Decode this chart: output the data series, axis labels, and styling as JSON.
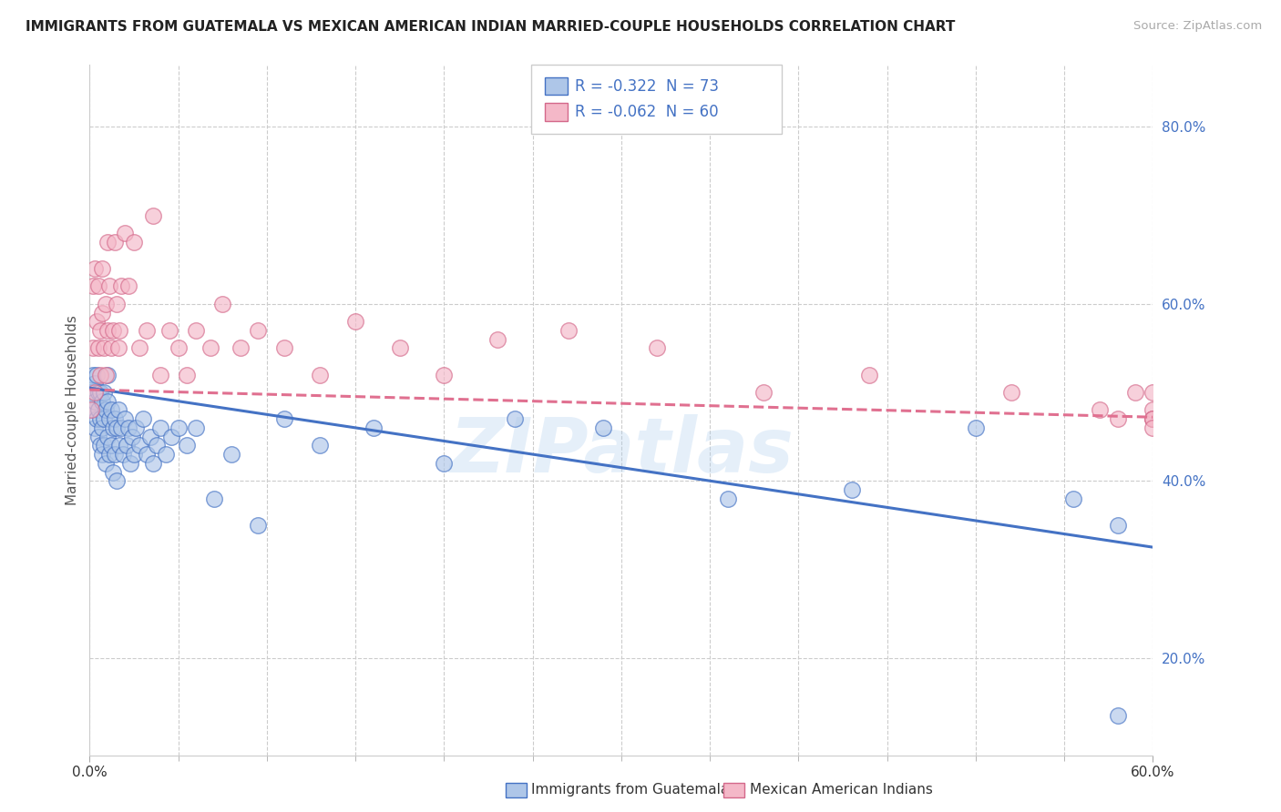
{
  "title": "IMMIGRANTS FROM GUATEMALA VS MEXICAN AMERICAN INDIAN MARRIED-COUPLE HOUSEHOLDS CORRELATION CHART",
  "source": "Source: ZipAtlas.com",
  "xlabel_blue": "Immigrants from Guatemala",
  "xlabel_pink": "Mexican American Indians",
  "ylabel": "Married-couple Households",
  "xlim": [
    0.0,
    0.6
  ],
  "ylim": [
    0.09,
    0.87
  ],
  "yticks": [
    0.2,
    0.4,
    0.6,
    0.8
  ],
  "xtick_major": [
    0.0,
    0.6
  ],
  "blue_R": -0.322,
  "blue_N": 73,
  "pink_R": -0.062,
  "pink_N": 60,
  "blue_color": "#aec6e8",
  "pink_color": "#f4b8c8",
  "blue_line_color": "#4472c4",
  "pink_line_color": "#e07090",
  "watermark": "ZIPatlas",
  "blue_line_x0": 0.0,
  "blue_line_y0": 0.505,
  "blue_line_x1": 0.6,
  "blue_line_y1": 0.325,
  "pink_line_x0": 0.0,
  "pink_line_y0": 0.503,
  "pink_line_x1": 0.6,
  "pink_line_y1": 0.472,
  "blue_scatter_x": [
    0.001,
    0.002,
    0.002,
    0.003,
    0.003,
    0.003,
    0.004,
    0.004,
    0.005,
    0.005,
    0.005,
    0.006,
    0.006,
    0.006,
    0.007,
    0.007,
    0.007,
    0.008,
    0.008,
    0.008,
    0.009,
    0.009,
    0.01,
    0.01,
    0.01,
    0.011,
    0.011,
    0.012,
    0.012,
    0.013,
    0.013,
    0.014,
    0.014,
    0.015,
    0.015,
    0.016,
    0.017,
    0.018,
    0.019,
    0.02,
    0.021,
    0.022,
    0.023,
    0.024,
    0.025,
    0.026,
    0.028,
    0.03,
    0.032,
    0.034,
    0.036,
    0.038,
    0.04,
    0.043,
    0.046,
    0.05,
    0.055,
    0.06,
    0.07,
    0.08,
    0.095,
    0.11,
    0.13,
    0.16,
    0.2,
    0.24,
    0.29,
    0.36,
    0.43,
    0.5,
    0.555,
    0.58,
    0.58
  ],
  "blue_scatter_y": [
    0.5,
    0.48,
    0.52,
    0.49,
    0.46,
    0.51,
    0.47,
    0.52,
    0.48,
    0.45,
    0.5,
    0.47,
    0.44,
    0.5,
    0.46,
    0.49,
    0.43,
    0.47,
    0.5,
    0.44,
    0.48,
    0.42,
    0.49,
    0.45,
    0.52,
    0.47,
    0.43,
    0.48,
    0.44,
    0.46,
    0.41,
    0.47,
    0.43,
    0.46,
    0.4,
    0.48,
    0.44,
    0.46,
    0.43,
    0.47,
    0.44,
    0.46,
    0.42,
    0.45,
    0.43,
    0.46,
    0.44,
    0.47,
    0.43,
    0.45,
    0.42,
    0.44,
    0.46,
    0.43,
    0.45,
    0.46,
    0.44,
    0.46,
    0.38,
    0.43,
    0.35,
    0.47,
    0.44,
    0.46,
    0.42,
    0.47,
    0.46,
    0.38,
    0.39,
    0.46,
    0.38,
    0.35,
    0.135
  ],
  "pink_scatter_x": [
    0.001,
    0.002,
    0.002,
    0.003,
    0.003,
    0.004,
    0.005,
    0.005,
    0.006,
    0.006,
    0.007,
    0.007,
    0.008,
    0.009,
    0.009,
    0.01,
    0.01,
    0.011,
    0.012,
    0.013,
    0.014,
    0.015,
    0.016,
    0.017,
    0.018,
    0.02,
    0.022,
    0.025,
    0.028,
    0.032,
    0.036,
    0.04,
    0.045,
    0.05,
    0.055,
    0.06,
    0.068,
    0.075,
    0.085,
    0.095,
    0.11,
    0.13,
    0.15,
    0.175,
    0.2,
    0.23,
    0.27,
    0.32,
    0.38,
    0.44,
    0.52,
    0.57,
    0.58,
    0.59,
    0.6,
    0.6,
    0.6,
    0.6,
    0.6,
    0.6
  ],
  "pink_scatter_y": [
    0.48,
    0.62,
    0.55,
    0.64,
    0.5,
    0.58,
    0.55,
    0.62,
    0.57,
    0.52,
    0.59,
    0.64,
    0.55,
    0.6,
    0.52,
    0.57,
    0.67,
    0.62,
    0.55,
    0.57,
    0.67,
    0.6,
    0.55,
    0.57,
    0.62,
    0.68,
    0.62,
    0.67,
    0.55,
    0.57,
    0.7,
    0.52,
    0.57,
    0.55,
    0.52,
    0.57,
    0.55,
    0.6,
    0.55,
    0.57,
    0.55,
    0.52,
    0.58,
    0.55,
    0.52,
    0.56,
    0.57,
    0.55,
    0.5,
    0.52,
    0.5,
    0.48,
    0.47,
    0.5,
    0.47,
    0.5,
    0.48,
    0.47,
    0.47,
    0.46
  ]
}
